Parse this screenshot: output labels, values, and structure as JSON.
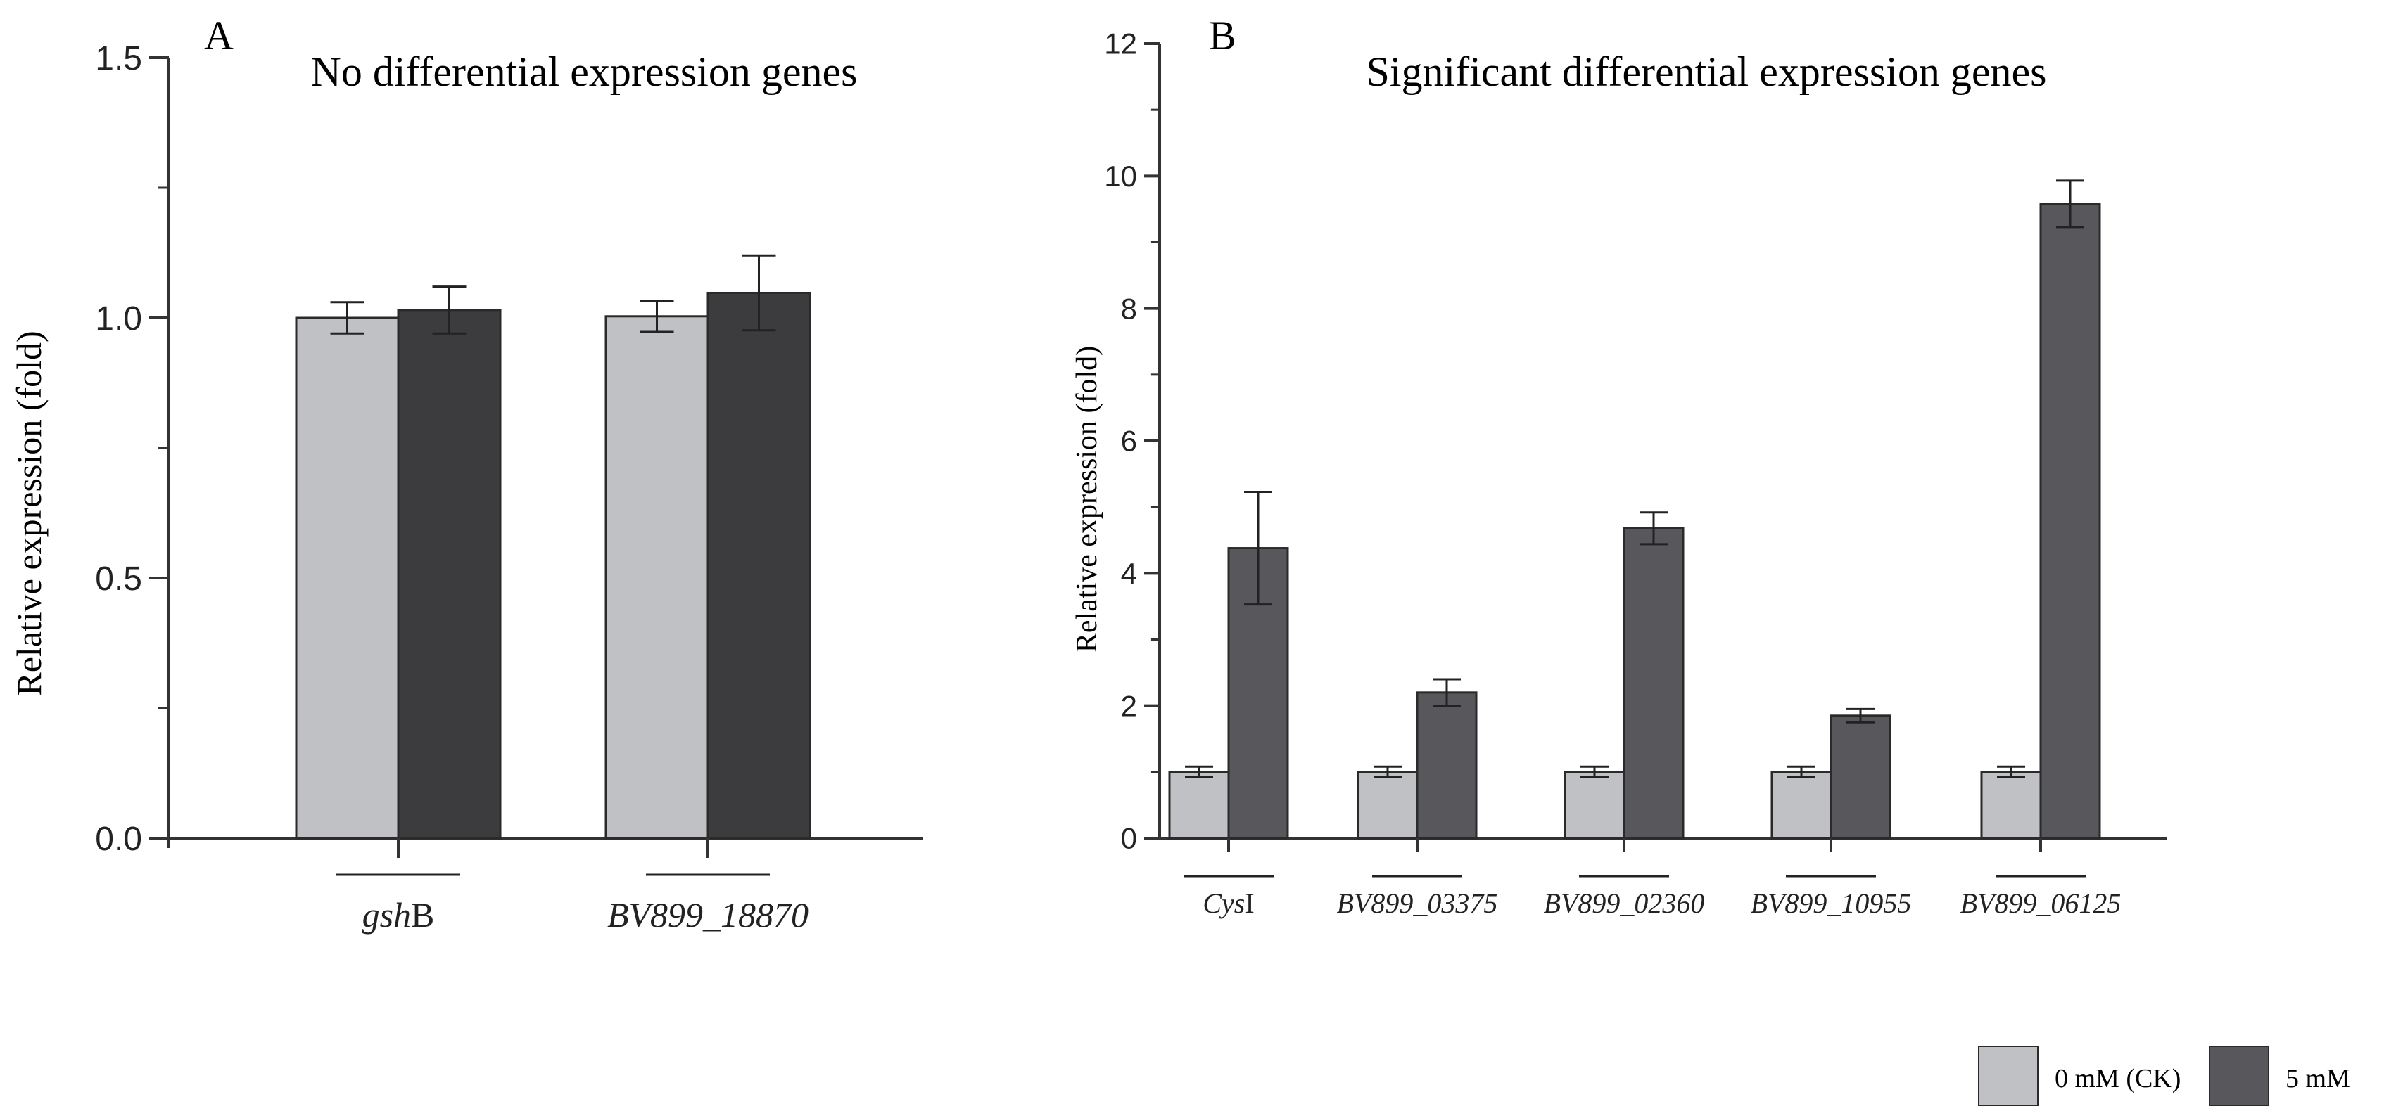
{
  "colors": {
    "ck_fill": "#bfc1c4",
    "a_treat_fill": "#3c3c3f",
    "b_treat_fill": "#58585c",
    "edge": "#2a2a2a",
    "axis": "#333333"
  },
  "legend": {
    "items": [
      "0 mM (CK)",
      "5 mM"
    ]
  },
  "chart_data": [
    {
      "type": "bar",
      "panel_label": "A",
      "title": "No  differential expression genes",
      "xlabel": "",
      "ylabel": "Relative expression (fold)",
      "ylim": [
        0,
        1.5
      ],
      "yticks": [
        "0.0",
        "0.5",
        "1.0",
        "1.5"
      ],
      "categories": [
        {
          "label": "gsh",
          "suffix": "B"
        },
        {
          "label": "BV899_18870",
          "suffix": ""
        }
      ],
      "series": [
        {
          "name": "0 mM (CK)",
          "values": [
            1.0,
            1.003
          ],
          "errors": [
            0.03,
            0.03
          ]
        },
        {
          "name": "5 mM",
          "values": [
            1.015,
            1.048
          ],
          "errors": [
            0.045,
            0.072
          ]
        }
      ]
    },
    {
      "type": "bar",
      "panel_label": "B",
      "title": "Significant differential expression genes",
      "xlabel": "",
      "ylabel": "Relative expression (fold)",
      "ylim": [
        0,
        12
      ],
      "yticks": [
        "0",
        "2",
        "4",
        "6",
        "8",
        "10",
        "12"
      ],
      "categories": [
        {
          "label": "Cys",
          "suffix": "I"
        },
        {
          "label": "BV899_03375",
          "suffix": ""
        },
        {
          "label": "BV899_02360",
          "suffix": ""
        },
        {
          "label": "BV899_10955",
          "suffix": ""
        },
        {
          "label": "BV899_06125",
          "suffix": ""
        }
      ],
      "series": [
        {
          "name": "0 mM (CK)",
          "values": [
            1.0,
            1.0,
            1.0,
            1.0,
            1.0
          ],
          "errors": [
            0.08,
            0.08,
            0.08,
            0.08,
            0.08
          ]
        },
        {
          "name": "5 mM",
          "values": [
            4.38,
            2.2,
            4.68,
            1.85,
            9.58
          ],
          "errors": [
            0.85,
            0.2,
            0.24,
            0.1,
            0.35
          ]
        }
      ]
    }
  ]
}
